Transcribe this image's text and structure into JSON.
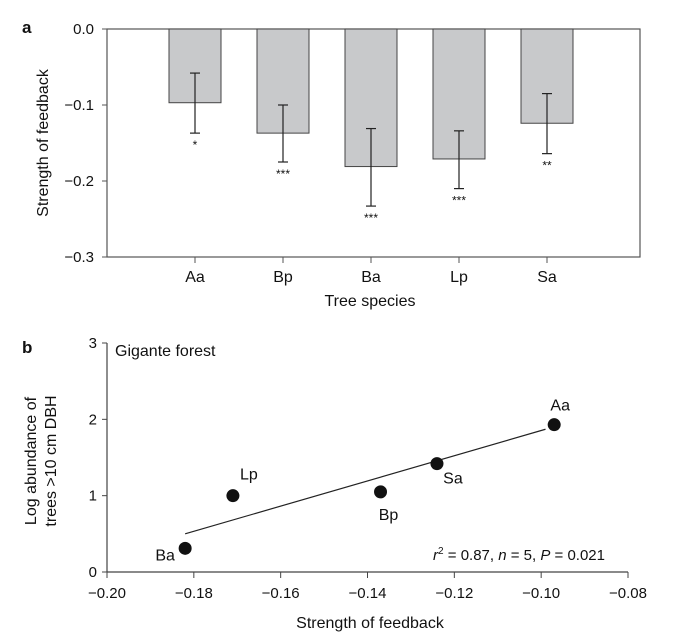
{
  "chart_data": [
    {
      "panel": "a",
      "type": "bar",
      "xlabel": "Tree species",
      "ylabel": "Strength of feedback",
      "ylim": [
        -0.3,
        0.0
      ],
      "yticks": [
        0.0,
        -0.1,
        -0.2,
        -0.3
      ],
      "ytick_labels": [
        "0.0",
        "−0.1",
        "−0.2",
        "−0.3"
      ],
      "categories": [
        "Aa",
        "Bp",
        "Ba",
        "Lp",
        "Sa"
      ],
      "values": [
        -0.097,
        -0.137,
        -0.181,
        -0.171,
        -0.124
      ],
      "error_upper": [
        -0.058,
        -0.1,
        -0.131,
        -0.134,
        -0.085
      ],
      "error_lower": [
        -0.137,
        -0.175,
        -0.233,
        -0.21,
        -0.164
      ],
      "significance": [
        "*",
        "***",
        "***",
        "***",
        "**"
      ],
      "bar_color": "#c8c9cb"
    },
    {
      "panel": "b",
      "type": "scatter",
      "title": "Gigante forest",
      "xlabel": "Strength of feedback",
      "ylabel_line1": "Log abundance of",
      "ylabel_line2": "trees >10 cm DBH",
      "xlim": [
        -0.2,
        -0.08
      ],
      "ylim": [
        0,
        3
      ],
      "xticks": [
        -0.2,
        -0.18,
        -0.16,
        -0.14,
        -0.12,
        -0.1,
        -0.08
      ],
      "xtick_labels": [
        "−0.20",
        "−0.18",
        "−0.16",
        "−0.14",
        "−0.12",
        "−0.10",
        "−0.08"
      ],
      "yticks": [
        0,
        1,
        2,
        3
      ],
      "ytick_labels": [
        "0",
        "1",
        "2",
        "3"
      ],
      "points": [
        {
          "label": "Aa",
          "x": -0.097,
          "y": 1.93
        },
        {
          "label": "Sa",
          "x": -0.124,
          "y": 1.42
        },
        {
          "label": "Bp",
          "x": -0.137,
          "y": 1.05
        },
        {
          "label": "Lp",
          "x": -0.171,
          "y": 1.0
        },
        {
          "label": "Ba",
          "x": -0.182,
          "y": 0.31
        }
      ],
      "fit_line": {
        "x": [
          -0.182,
          -0.099
        ],
        "y": [
          0.5,
          1.87
        ]
      },
      "stats": {
        "r2_label": "r",
        "r2_sup": "2",
        "r2_value": " = 0.87, ",
        "n_label": "n",
        "n_value": " = 5, ",
        "p_label": "P",
        "p_value": " = 0.021"
      }
    }
  ]
}
